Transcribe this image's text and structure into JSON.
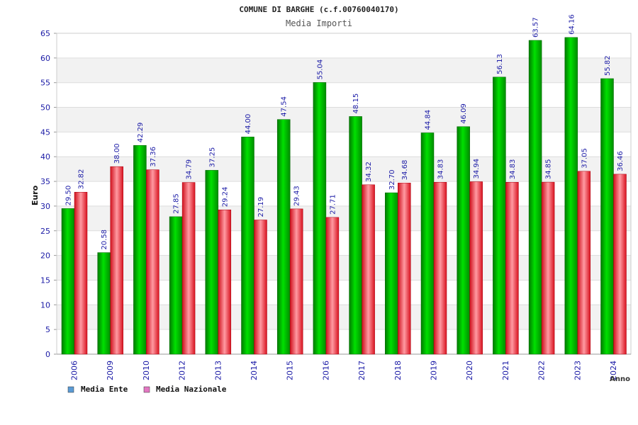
{
  "chart_data": {
    "type": "bar",
    "title": "COMUNE DI BARGHE (c.f.00760040170)",
    "subtitle": "Media Importi",
    "xlabel": "Anno",
    "ylabel": "Euro",
    "ylim": [
      0,
      65
    ],
    "yticks": [
      0,
      5,
      10,
      15,
      20,
      25,
      30,
      35,
      40,
      45,
      50,
      55,
      60,
      65
    ],
    "categories": [
      "2006",
      "2009",
      "2010",
      "2012",
      "2013",
      "2014",
      "2015",
      "2016",
      "2017",
      "2018",
      "2019",
      "2020",
      "2021",
      "2022",
      "2023",
      "2024"
    ],
    "series": [
      {
        "name": "Media Ente",
        "legend_color": "#5b9bd5",
        "color": "#00c000",
        "values": [
          29.5,
          20.58,
          42.29,
          27.85,
          37.25,
          44.0,
          47.54,
          55.04,
          48.15,
          32.7,
          44.84,
          46.09,
          56.13,
          63.57,
          64.16,
          55.82
        ],
        "labels": [
          "29.50",
          "20.58",
          "42.29",
          "27.85",
          "37.25",
          "44.00",
          "47.54",
          "55.04",
          "48.15",
          "32.70",
          "44.84",
          "46.09",
          "56.13",
          "63.57",
          "64.16",
          "55.82"
        ]
      },
      {
        "name": "Media Nazionale",
        "legend_color": "#e377c2",
        "color": "#e81c2c",
        "values": [
          32.82,
          38.0,
          37.36,
          34.79,
          29.24,
          27.19,
          29.43,
          27.71,
          34.32,
          34.68,
          34.83,
          34.94,
          34.83,
          34.85,
          37.05,
          36.46
        ],
        "labels": [
          "32.82",
          "38.00",
          "37.36",
          "34.79",
          "29.24",
          "27.19",
          "29.43",
          "27.71",
          "34.32",
          "34.68",
          "34.83",
          "34.94",
          "34.83",
          "34.85",
          "37.05",
          "36.46"
        ]
      }
    ],
    "grid": true,
    "band_fill": "#f2f2f2",
    "legend_position": "bottom-left"
  }
}
